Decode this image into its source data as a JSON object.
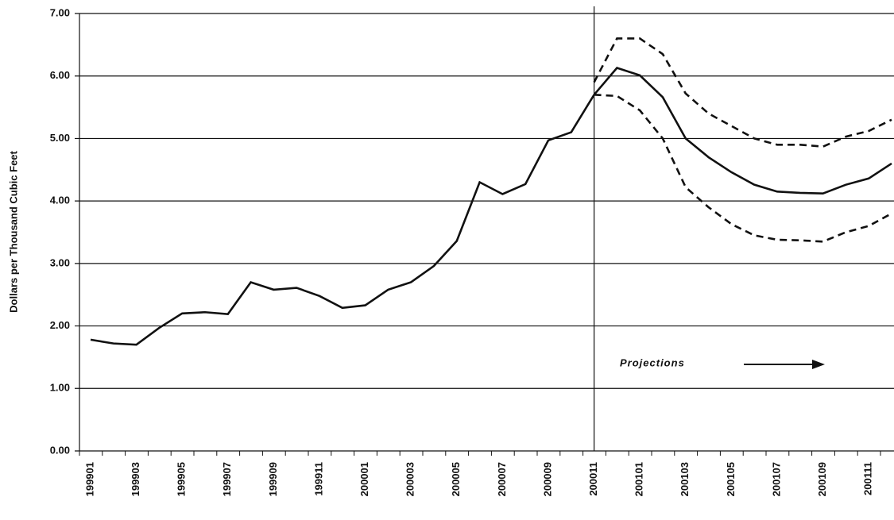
{
  "chart_data": {
    "type": "line",
    "y_label": "Dollars per Thousand Cubic Feet",
    "annotation": "Projections",
    "categories": [
      "199901",
      null,
      "199903",
      null,
      "199905",
      null,
      "199907",
      null,
      "199909",
      null,
      "199911",
      null,
      "200001",
      null,
      "200003",
      null,
      "200005",
      null,
      "200007",
      null,
      "200009",
      null,
      "200011",
      null,
      "200101",
      null,
      "200103",
      null,
      "200105",
      null,
      "200107",
      null,
      "200109",
      null,
      "200111",
      null
    ],
    "series": [
      {
        "color": "#111111",
        "line_style": "solid",
        "values": [
          1.78,
          1.72,
          1.7,
          1.97,
          2.2,
          2.22,
          2.19,
          2.7,
          2.58,
          2.61,
          2.48,
          2.29,
          2.33,
          2.58,
          2.7,
          2.96,
          3.36,
          4.3,
          4.11,
          4.27,
          4.97,
          5.1,
          5.7,
          6.13,
          6.01,
          5.66,
          5.0,
          4.7,
          4.46,
          4.26,
          4.15,
          4.13,
          4.12,
          4.26,
          4.36,
          4.6
        ]
      },
      {
        "color": "#111111",
        "line_style": "dashed",
        "values": [
          null,
          null,
          null,
          null,
          null,
          null,
          null,
          null,
          null,
          null,
          null,
          null,
          null,
          null,
          null,
          null,
          null,
          null,
          null,
          null,
          null,
          null,
          5.9,
          6.6,
          6.6,
          6.35,
          5.72,
          5.4,
          5.2,
          5.0,
          4.9,
          4.9,
          4.87,
          5.03,
          5.12,
          5.3
        ]
      },
      {
        "color": "#111111",
        "line_style": "dashed",
        "values": [
          null,
          null,
          null,
          null,
          null,
          null,
          null,
          null,
          null,
          null,
          null,
          null,
          null,
          null,
          null,
          null,
          null,
          null,
          null,
          null,
          null,
          null,
          5.7,
          5.68,
          5.45,
          5.0,
          4.22,
          3.9,
          3.63,
          3.45,
          3.38,
          3.37,
          3.35,
          3.5,
          3.6,
          3.8
        ]
      }
    ],
    "ylim": [
      0,
      7
    ],
    "yticks": [
      {
        "value": 0,
        "label": "0.00"
      },
      {
        "value": 1,
        "label": "1.00"
      },
      {
        "value": 2,
        "label": "2.00"
      },
      {
        "value": 3,
        "label": "3.00"
      },
      {
        "value": 4,
        "label": "4.00"
      },
      {
        "value": 5,
        "label": "5.00"
      },
      {
        "value": 6,
        "label": "6.00"
      },
      {
        "value": 7,
        "label": "7.00"
      }
    ],
    "grid": true
  }
}
